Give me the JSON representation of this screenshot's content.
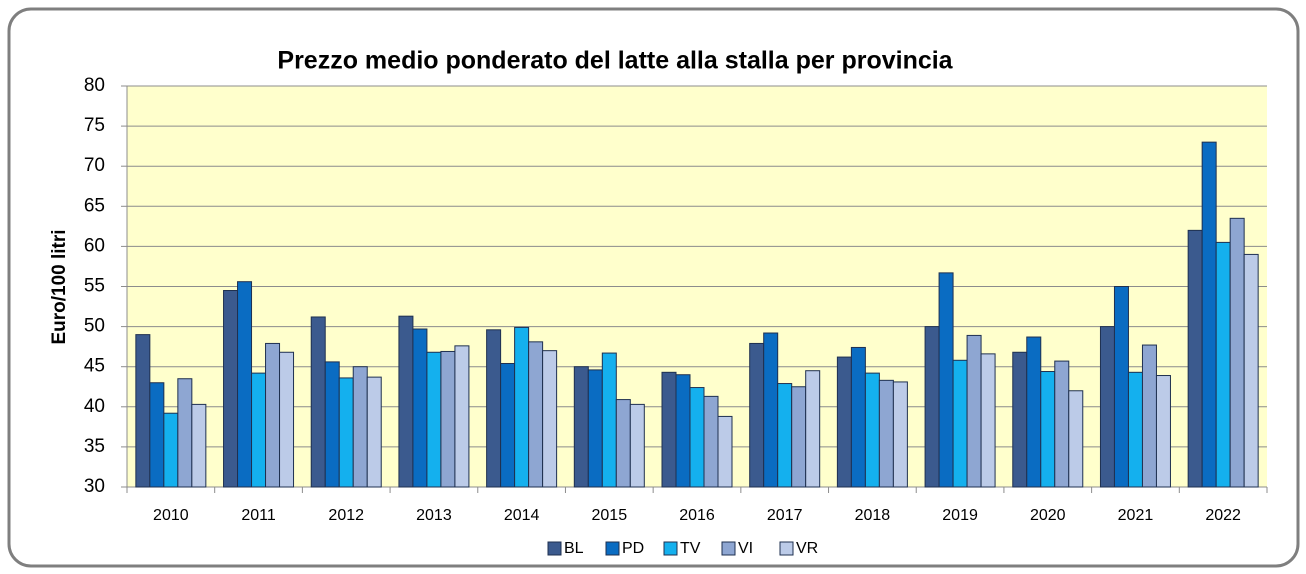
{
  "chart_data": {
    "type": "bar",
    "title": "Prezzo medio ponderato del latte alla stalla per provincia",
    "y_label": "Euro/100 litri",
    "categories": [
      "2010",
      "2011",
      "2012",
      "2013",
      "2014",
      "2015",
      "2016",
      "2017",
      "2018",
      "2019",
      "2020",
      "2021",
      "2022"
    ],
    "series": [
      {
        "name": "BL",
        "color": "#3b5a8e",
        "values": [
          49,
          54.5,
          51.2,
          51.3,
          49.6,
          45,
          44.3,
          47.9,
          46.2,
          50,
          46.8,
          50,
          62
        ]
      },
      {
        "name": "PD",
        "color": "#0a6cc2",
        "values": [
          43,
          55.6,
          45.6,
          49.7,
          45.4,
          44.6,
          44,
          49.2,
          47.4,
          56.7,
          48.7,
          55,
          73
        ]
      },
      {
        "name": "TV",
        "color": "#14b0ee",
        "values": [
          39.2,
          44.2,
          43.6,
          46.8,
          49.9,
          46.7,
          42.4,
          42.9,
          44.2,
          45.8,
          44.4,
          44.3,
          60.5
        ]
      },
      {
        "name": "VI",
        "color": "#8ea6d2",
        "values": [
          43.5,
          47.9,
          45,
          46.9,
          48.1,
          40.9,
          41.3,
          42.5,
          43.3,
          48.9,
          45.7,
          47.7,
          63.5
        ]
      },
      {
        "name": "VR",
        "color": "#bccbe8",
        "values": [
          40.3,
          46.8,
          43.7,
          47.6,
          47,
          40.3,
          38.8,
          44.5,
          43.1,
          46.6,
          42,
          43.9,
          59
        ]
      }
    ],
    "ylim": [
      30,
      80
    ],
    "yticks": [
      30,
      35,
      40,
      45,
      50,
      55,
      60,
      65,
      70,
      75,
      80
    ],
    "grid": true,
    "legend": "bottom",
    "plot_background": "#ffffcc"
  }
}
